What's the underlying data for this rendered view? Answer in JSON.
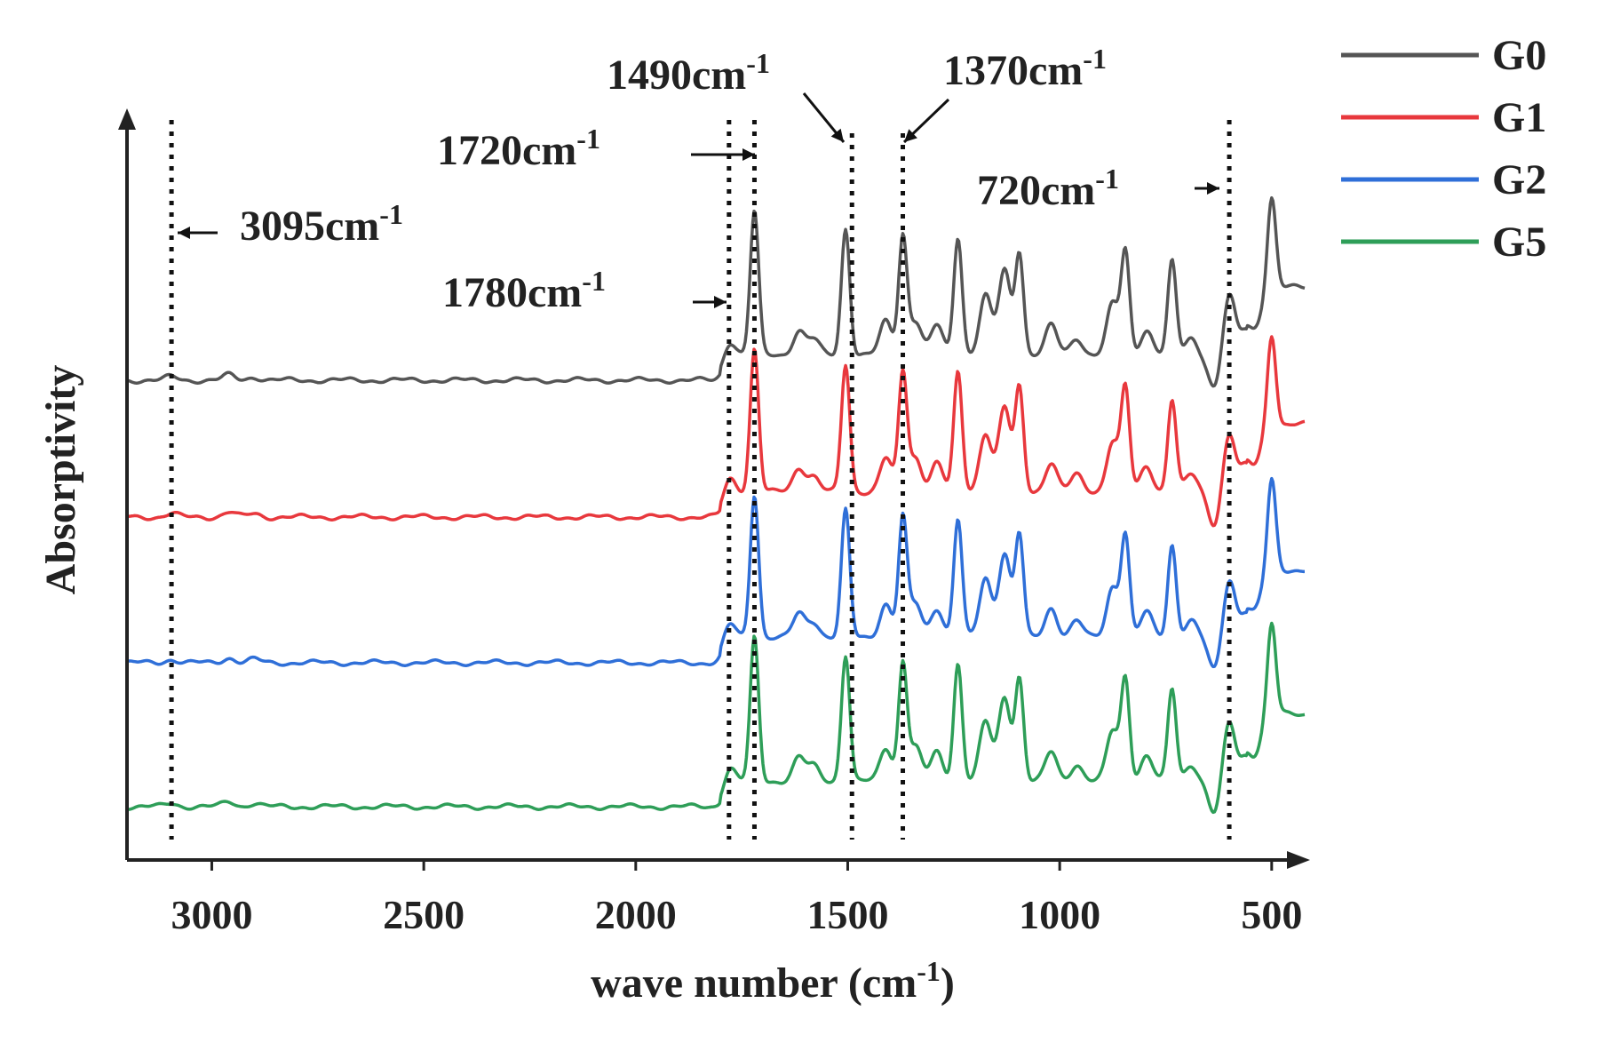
{
  "chart_data": {
    "type": "line",
    "title": "",
    "xlabel": "wave number (cm",
    "xlabel_sup": "-1",
    "xlabel_close": ")",
    "ylabel": "Absorptivity",
    "xlim": [
      3200,
      420
    ],
    "x_reversed": true,
    "y_ticks_shown": false,
    "x_ticks": [
      3000,
      2500,
      2000,
      1500,
      1000,
      500
    ],
    "x_tick_labels": [
      "3000",
      "2500",
      "2000",
      "1500",
      "1000",
      "500"
    ],
    "legend_position": "top-right",
    "series": [
      {
        "name": "G0",
        "color": "#555555",
        "offset": 0
      },
      {
        "name": "G1",
        "color": "#e8383d",
        "offset": 1
      },
      {
        "name": "G2",
        "color": "#2f6fd8",
        "offset": 2
      },
      {
        "name": "G5",
        "color": "#2e9e58",
        "offset": 3
      }
    ],
    "reference_lines": [
      3095,
      1780,
      1720,
      1490,
      1370,
      600
    ],
    "annotations": [
      {
        "id": "a3095",
        "value": "3095",
        "unit": "cm",
        "sup": "-1",
        "target": 3095
      },
      {
        "id": "a1780",
        "value": "1780",
        "unit": "cm",
        "sup": "-1",
        "target": 1780
      },
      {
        "id": "a1720",
        "value": "1720",
        "unit": "cm",
        "sup": "-1",
        "target": 1720
      },
      {
        "id": "a1490",
        "value": "1490",
        "unit": "cm",
        "sup": "-1",
        "target": 1490
      },
      {
        "id": "a1370",
        "value": "1370",
        "unit": "cm",
        "sup": "-1",
        "target": 1370
      },
      {
        "id": "a720",
        "value": "720",
        "unit": "cm",
        "sup": "-1",
        "target": 720
      }
    ],
    "spectrum_profile": {
      "baseline_region": [
        3200,
        1800
      ],
      "peaks": [
        {
          "x": 3095,
          "h": 4
        },
        {
          "x": 2960,
          "h": 6
        },
        {
          "x": 2900,
          "h": 4
        },
        {
          "x": 1780,
          "h": 22
        },
        {
          "x": 1720,
          "h": 170
        },
        {
          "x": 1615,
          "h": 28
        },
        {
          "x": 1580,
          "h": 18
        },
        {
          "x": 1505,
          "h": 150
        },
        {
          "x": 1410,
          "h": 40
        },
        {
          "x": 1370,
          "h": 140
        },
        {
          "x": 1340,
          "h": 40
        },
        {
          "x": 1290,
          "h": 35
        },
        {
          "x": 1240,
          "h": 140
        },
        {
          "x": 1175,
          "h": 70
        },
        {
          "x": 1130,
          "h": 100
        },
        {
          "x": 1095,
          "h": 120
        },
        {
          "x": 1020,
          "h": 35
        },
        {
          "x": 960,
          "h": 20
        },
        {
          "x": 875,
          "h": 60
        },
        {
          "x": 845,
          "h": 120
        },
        {
          "x": 795,
          "h": 30
        },
        {
          "x": 735,
          "h": 110
        },
        {
          "x": 690,
          "h": 20
        },
        {
          "x": 635,
          "h": -40
        },
        {
          "x": 600,
          "h": 70
        },
        {
          "x": 560,
          "h": 30
        },
        {
          "x": 500,
          "h": 110
        }
      ]
    }
  }
}
